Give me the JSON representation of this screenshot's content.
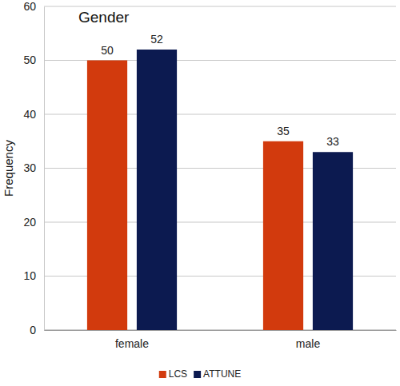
{
  "chart_data": {
    "type": "bar",
    "title": "Gender",
    "y_label": "Frequency",
    "categories": [
      "female",
      "male"
    ],
    "series": [
      {
        "name": "LCS",
        "color": "#d23a0d",
        "values": [
          50,
          35
        ]
      },
      {
        "name": "ATTUNE",
        "color": "#0c1a50",
        "values": [
          52,
          33
        ]
      }
    ],
    "ylim": [
      0,
      60
    ],
    "yticks": [
      0,
      10,
      20,
      30,
      40,
      50,
      60
    ],
    "grid": true,
    "legend": "bottom",
    "data_labels": true
  }
}
